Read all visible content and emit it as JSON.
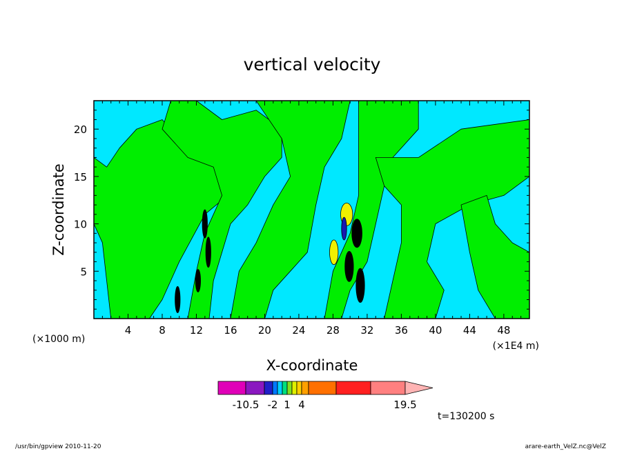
{
  "chart_data": {
    "type": "heatmap",
    "title": "vertical velocity",
    "xlabel": "X-coordinate",
    "ylabel": "Z-coordinate",
    "x_unit_left": "(×1000 m)",
    "x_unit_right": "(×1E4 m)",
    "x_ticks": [
      "4",
      "8",
      "12",
      "16",
      "20",
      "24",
      "28",
      "32",
      "36",
      "40",
      "44",
      "48"
    ],
    "y_ticks": [
      "5",
      "10",
      "15",
      "20"
    ],
    "xlim": [
      0,
      51
    ],
    "ylim": [
      0,
      23
    ],
    "time_label": "t=130200 s",
    "colorbar": {
      "tick_labels": [
        "-10.5",
        "-2",
        "1",
        "4",
        "19.5"
      ],
      "colors": [
        "#e000b8",
        "#8a18c0",
        "#2020c8",
        "#0078ff",
        "#00d0ff",
        "#00e080",
        "#80e020",
        "#e0f000",
        "#ffd000",
        "#ffa000",
        "#ff7000",
        "#ff2020",
        "#ff8080",
        "#ffb4b4"
      ]
    },
    "field_colors": {
      "background": "#00e8ff",
      "positive": "#00ee00",
      "strong_positive": "#f0f000",
      "negative": "#1818b0",
      "extreme": "#000000"
    }
  },
  "footer": {
    "left": "/usr/bin/gpview  2010-11-20",
    "right": "arare-earth_VelZ.nc@VelZ"
  }
}
